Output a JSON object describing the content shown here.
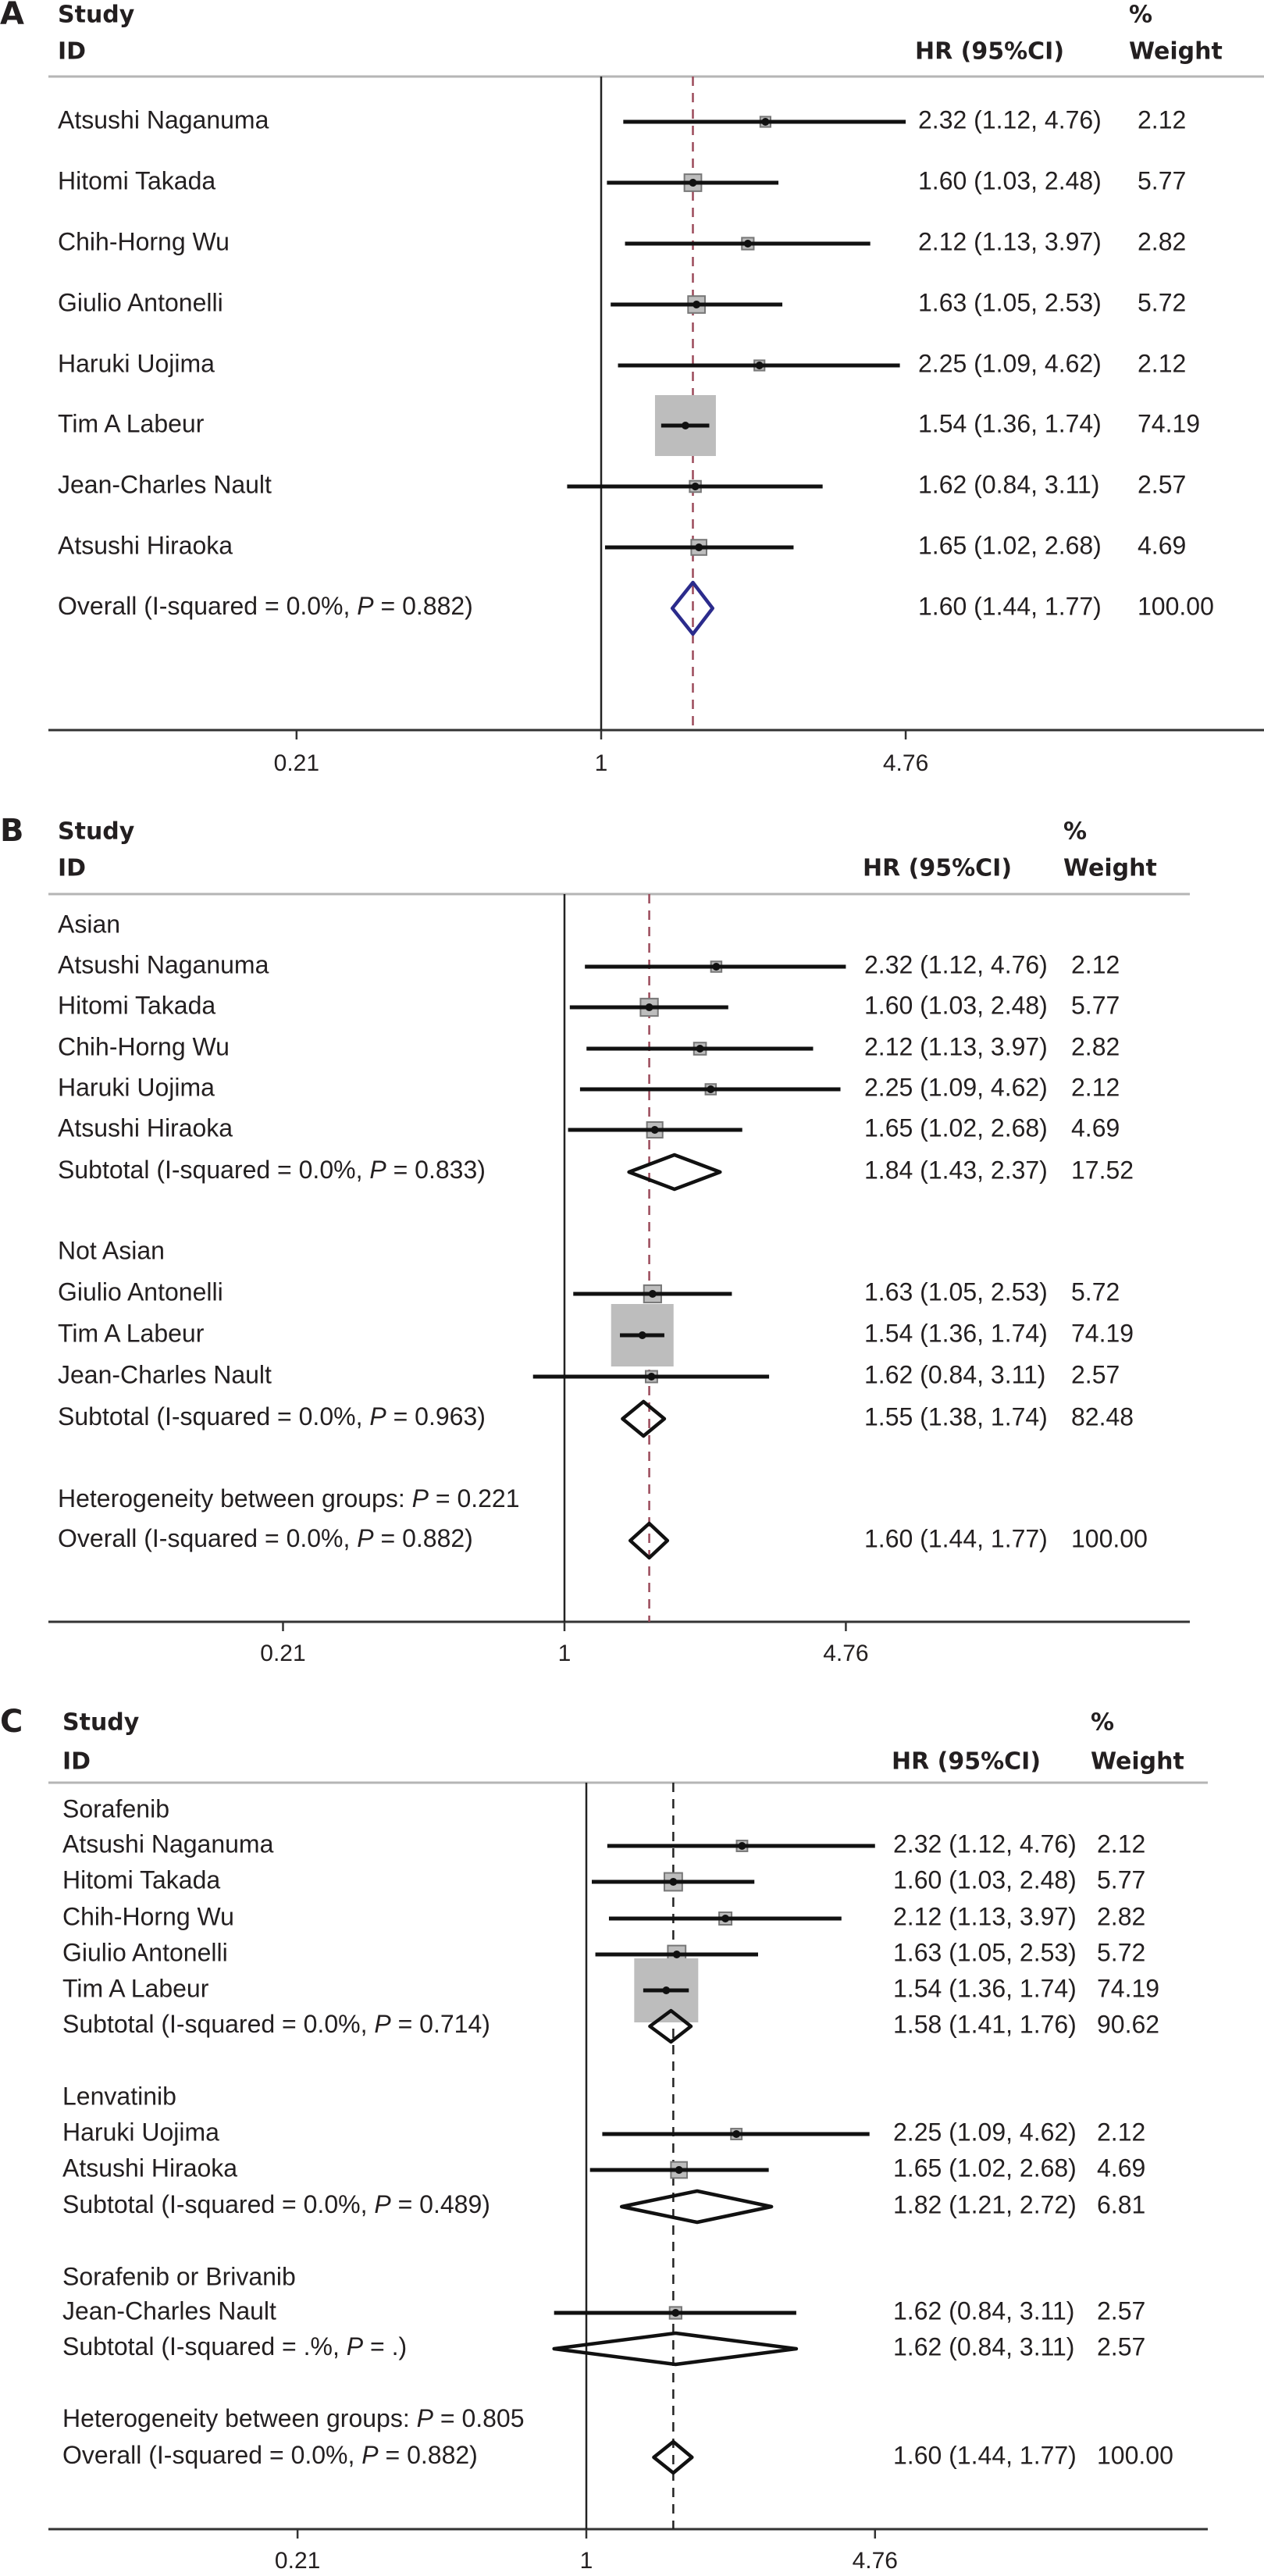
{
  "chart_data": [
    {
      "type": "forest",
      "panel": "A",
      "headers": {
        "study": "Study",
        "id": "ID",
        "hr": "HR (95%CI)",
        "pct": "%",
        "weight": "Weight"
      },
      "x_scale": "log",
      "x_ticks": [
        0.21,
        1,
        4.76
      ],
      "x_tick_labels": [
        "0.21",
        "1",
        "4.76"
      ],
      "null_line": 1,
      "overall_line": 1.6,
      "colors": {
        "overall_line": "#9b4a5a",
        "overall_diamond": "#2b2b8c",
        "box": "#bdbdbd"
      },
      "rows": [
        {
          "type": "study",
          "label": "Atsushi Naganuma",
          "hr": 2.32,
          "lo": 1.12,
          "hi": 4.76,
          "ci_text": "2.32 (1.12, 4.76)",
          "weight": "2.12"
        },
        {
          "type": "study",
          "label": "Hitomi Takada",
          "hr": 1.6,
          "lo": 1.03,
          "hi": 2.48,
          "ci_text": "1.60 (1.03, 2.48)",
          "weight": "5.77"
        },
        {
          "type": "study",
          "label": "Chih-Horng Wu",
          "hr": 2.12,
          "lo": 1.13,
          "hi": 3.97,
          "ci_text": "2.12 (1.13, 3.97)",
          "weight": "2.82"
        },
        {
          "type": "study",
          "label": "Giulio Antonelli",
          "hr": 1.63,
          "lo": 1.05,
          "hi": 2.53,
          "ci_text": "1.63 (1.05, 2.53)",
          "weight": "5.72"
        },
        {
          "type": "study",
          "label": "Haruki Uojima",
          "hr": 2.25,
          "lo": 1.09,
          "hi": 4.62,
          "ci_text": "2.25 (1.09, 4.62)",
          "weight": "2.12"
        },
        {
          "type": "study",
          "label": "Tim A Labeur",
          "hr": 1.54,
          "lo": 1.36,
          "hi": 1.74,
          "ci_text": "1.54 (1.36, 1.74)",
          "weight": "74.19"
        },
        {
          "type": "study",
          "label": "Jean-Charles Nault",
          "hr": 1.62,
          "lo": 0.84,
          "hi": 3.11,
          "ci_text": "1.62 (0.84, 3.11)",
          "weight": "2.57"
        },
        {
          "type": "study",
          "label": "Atsushi Hiraoka",
          "hr": 1.65,
          "lo": 1.02,
          "hi": 2.68,
          "ci_text": "1.65 (1.02, 2.68)",
          "weight": "4.69"
        },
        {
          "type": "overall",
          "label": "Overall  (I-squared = 0.0%, P = 0.882)",
          "hr": 1.6,
          "lo": 1.44,
          "hi": 1.77,
          "ci_text": "1.60 (1.44, 1.77)",
          "weight": "100.00"
        }
      ]
    },
    {
      "type": "forest",
      "panel": "B",
      "headers": {
        "study": "Study",
        "id": "ID",
        "hr": "HR (95%CI)",
        "pct": "%",
        "weight": "Weight"
      },
      "x_scale": "log",
      "x_ticks": [
        0.21,
        1,
        4.76
      ],
      "x_tick_labels": [
        "0.21",
        "1",
        "4.76"
      ],
      "null_line": 1,
      "overall_line": 1.6,
      "colors": {
        "overall_line": "#9b4a5a",
        "overall_diamond": "#111111",
        "box": "#bdbdbd"
      },
      "rows": [
        {
          "type": "group",
          "label": "Asian"
        },
        {
          "type": "study",
          "label": "Atsushi Naganuma",
          "hr": 2.32,
          "lo": 1.12,
          "hi": 4.76,
          "ci_text": "2.32 (1.12, 4.76)",
          "weight": "2.12"
        },
        {
          "type": "study",
          "label": "Hitomi Takada",
          "hr": 1.6,
          "lo": 1.03,
          "hi": 2.48,
          "ci_text": "1.60 (1.03, 2.48)",
          "weight": "5.77"
        },
        {
          "type": "study",
          "label": "Chih-Horng Wu",
          "hr": 2.12,
          "lo": 1.13,
          "hi": 3.97,
          "ci_text": "2.12 (1.13, 3.97)",
          "weight": "2.82"
        },
        {
          "type": "study",
          "label": "Haruki Uojima",
          "hr": 2.25,
          "lo": 1.09,
          "hi": 4.62,
          "ci_text": "2.25 (1.09, 4.62)",
          "weight": "2.12"
        },
        {
          "type": "study",
          "label": "Atsushi Hiraoka",
          "hr": 1.65,
          "lo": 1.02,
          "hi": 2.68,
          "ci_text": "1.65 (1.02, 2.68)",
          "weight": "4.69"
        },
        {
          "type": "subtotal",
          "label": "Subtotal  (I-squared = 0.0%, P = 0.833)",
          "hr": 1.84,
          "lo": 1.43,
          "hi": 2.37,
          "ci_text": "1.84 (1.43, 2.37)",
          "weight": "17.52"
        },
        {
          "type": "group",
          "label": "Not Asian"
        },
        {
          "type": "study",
          "label": "Giulio Antonelli",
          "hr": 1.63,
          "lo": 1.05,
          "hi": 2.53,
          "ci_text": "1.63 (1.05, 2.53)",
          "weight": "5.72"
        },
        {
          "type": "study",
          "label": "Tim A Labeur",
          "hr": 1.54,
          "lo": 1.36,
          "hi": 1.74,
          "ci_text": "1.54 (1.36, 1.74)",
          "weight": "74.19"
        },
        {
          "type": "study",
          "label": "Jean-Charles Nault",
          "hr": 1.62,
          "lo": 0.84,
          "hi": 3.11,
          "ci_text": "1.62 (0.84, 3.11)",
          "weight": "2.57"
        },
        {
          "type": "subtotal",
          "label": "Subtotal  (I-squared = 0.0%, P = 0.963)",
          "hr": 1.55,
          "lo": 1.38,
          "hi": 1.74,
          "ci_text": "1.55 (1.38, 1.74)",
          "weight": "82.48"
        },
        {
          "type": "heterogeneity",
          "label": "Heterogeneity between groups: P = 0.221"
        },
        {
          "type": "overall",
          "label": "Overall  (I-squared = 0.0%, P = 0.882)",
          "hr": 1.6,
          "lo": 1.44,
          "hi": 1.77,
          "ci_text": "1.60 (1.44, 1.77)",
          "weight": "100.00"
        }
      ]
    },
    {
      "type": "forest",
      "panel": "C",
      "headers": {
        "study": "Study",
        "id": "ID",
        "hr": "HR (95%CI)",
        "pct": "%",
        "weight": "Weight"
      },
      "x_scale": "log",
      "x_ticks": [
        0.21,
        1,
        4.76
      ],
      "x_tick_labels": [
        "0.21",
        "1",
        "4.76"
      ],
      "null_line": 1,
      "overall_line": 1.6,
      "colors": {
        "overall_line": "#222222",
        "overall_diamond": "#111111",
        "box": "#bdbdbd"
      },
      "rows": [
        {
          "type": "group",
          "label": "Sorafenib"
        },
        {
          "type": "study",
          "label": "Atsushi Naganuma",
          "hr": 2.32,
          "lo": 1.12,
          "hi": 4.76,
          "ci_text": "2.32 (1.12, 4.76)",
          "weight": "2.12"
        },
        {
          "type": "study",
          "label": "Hitomi Takada",
          "hr": 1.6,
          "lo": 1.03,
          "hi": 2.48,
          "ci_text": "1.60 (1.03, 2.48)",
          "weight": "5.77"
        },
        {
          "type": "study",
          "label": "Chih-Horng Wu",
          "hr": 2.12,
          "lo": 1.13,
          "hi": 3.97,
          "ci_text": "2.12 (1.13, 3.97)",
          "weight": "2.82"
        },
        {
          "type": "study",
          "label": "Giulio Antonelli",
          "hr": 1.63,
          "lo": 1.05,
          "hi": 2.53,
          "ci_text": "1.63 (1.05, 2.53)",
          "weight": "5.72"
        },
        {
          "type": "study",
          "label": "Tim A Labeur",
          "hr": 1.54,
          "lo": 1.36,
          "hi": 1.74,
          "ci_text": "1.54 (1.36, 1.74)",
          "weight": "74.19"
        },
        {
          "type": "subtotal",
          "label": "Subtotal  (I-squared = 0.0%, P = 0.714)",
          "hr": 1.58,
          "lo": 1.41,
          "hi": 1.76,
          "ci_text": "1.58 (1.41, 1.76)",
          "weight": "90.62"
        },
        {
          "type": "group",
          "label": "Lenvatinib"
        },
        {
          "type": "study",
          "label": "Haruki Uojima",
          "hr": 2.25,
          "lo": 1.09,
          "hi": 4.62,
          "ci_text": "2.25 (1.09, 4.62)",
          "weight": "2.12"
        },
        {
          "type": "study",
          "label": "Atsushi Hiraoka",
          "hr": 1.65,
          "lo": 1.02,
          "hi": 2.68,
          "ci_text": "1.65 (1.02, 2.68)",
          "weight": "4.69"
        },
        {
          "type": "subtotal",
          "label": "Subtotal  (I-squared = 0.0%, P = 0.489)",
          "hr": 1.82,
          "lo": 1.21,
          "hi": 2.72,
          "ci_text": "1.82 (1.21, 2.72)",
          "weight": "6.81"
        },
        {
          "type": "group",
          "label": "Sorafenib or Brivanib"
        },
        {
          "type": "study",
          "label": "Jean-Charles Nault",
          "hr": 1.62,
          "lo": 0.84,
          "hi": 3.11,
          "ci_text": "1.62 (0.84, 3.11)",
          "weight": "2.57"
        },
        {
          "type": "subtotal",
          "label": "Subtotal  (I-squared = .%, P = .)",
          "hr": 1.62,
          "lo": 0.84,
          "hi": 3.11,
          "ci_text": "1.62 (0.84, 3.11)",
          "weight": "2.57"
        },
        {
          "type": "heterogeneity",
          "label": "Heterogeneity between groups: P = 0.805"
        },
        {
          "type": "overall",
          "label": "Overall  (I-squared = 0.0%, P = 0.882)",
          "hr": 1.6,
          "lo": 1.44,
          "hi": 1.77,
          "ci_text": "1.60 (1.44, 1.77)",
          "weight": "100.00"
        }
      ]
    }
  ]
}
